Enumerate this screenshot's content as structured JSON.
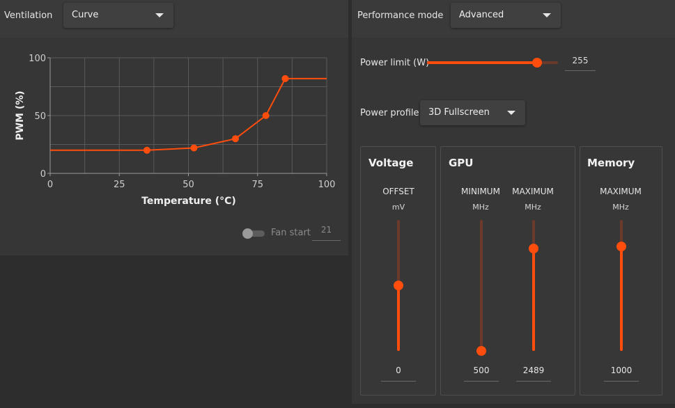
{
  "ventilation": {
    "label": "Ventilation",
    "mode": "Curve",
    "fan_start_label": "Fan start",
    "fan_start_value": "21",
    "fan_start_enabled": false
  },
  "performance": {
    "label": "Performance mode",
    "mode": "Advanced",
    "power_limit_label": "Power limit (W)",
    "power_limit_value": "255",
    "power_limit_fraction": 0.84,
    "power_profile_label": "Power profile",
    "power_profile_value": "3D Fullscreen"
  },
  "colors": {
    "accent": "#ff4d0d",
    "track": "#6b3a2a"
  },
  "chart_data": {
    "type": "line",
    "xlabel": "Temperature (°C)",
    "ylabel": "PWM (%)",
    "xlim": [
      0,
      100
    ],
    "ylim": [
      0,
      100
    ],
    "xticks": [
      "0",
      "25",
      "50",
      "75",
      "100"
    ],
    "yticks": [
      "0",
      "50",
      "100"
    ],
    "grid": true,
    "series": [
      {
        "points": [
          [
            35,
            20
          ],
          [
            52,
            22
          ],
          [
            67,
            30
          ],
          [
            78,
            50
          ],
          [
            85,
            82
          ]
        ],
        "extend_left_to": 0,
        "extend_right_to": 100
      }
    ]
  },
  "voltage": {
    "title": "Voltage",
    "sliders": [
      {
        "label": "OFFSET",
        "unit": "mV",
        "value": "0",
        "fraction": 0.5
      }
    ]
  },
  "gpu": {
    "title": "GPU",
    "sliders": [
      {
        "label": "MINIMUM",
        "unit": "MHz",
        "value": "500",
        "fraction": 0.0
      },
      {
        "label": "MAXIMUM",
        "unit": "MHz",
        "value": "2489",
        "fraction": 0.78
      }
    ]
  },
  "memory": {
    "title": "Memory",
    "sliders": [
      {
        "label": "MAXIMUM",
        "unit": "MHz",
        "value": "1000",
        "fraction": 0.8
      }
    ]
  }
}
